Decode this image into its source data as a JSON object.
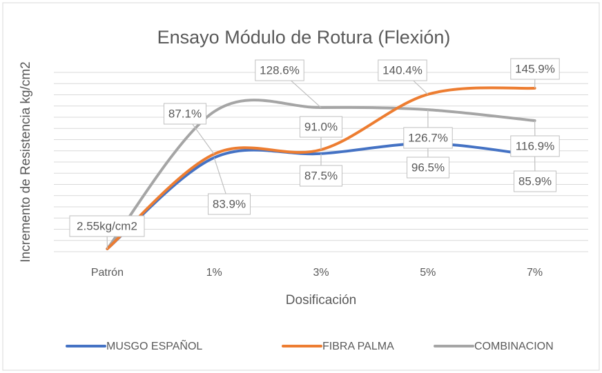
{
  "chart_data": {
    "type": "line",
    "title": "Ensayo Módulo de Rotura (Flexión)",
    "x_label": "Dosificación",
    "y_label": "Incremento de Resistencia kg/cm2",
    "categories": [
      "Patrón",
      "1%",
      "3%",
      "5%",
      "7%"
    ],
    "series": [
      {
        "name": "MUSGO ESPAÑOL",
        "color": "#4472c4",
        "values": [
          2.55,
          83.9,
          87.5,
          96.5,
          85.9
        ],
        "value_labels": [
          null,
          "83.9%",
          "87.5%",
          "96.5%",
          "85.9%"
        ]
      },
      {
        "name": "FIBRA PALMA",
        "color": "#ed7d31",
        "values": [
          2.55,
          87.1,
          91.0,
          140.4,
          145.9
        ],
        "value_labels": [
          null,
          "87.1%",
          "91.0%",
          "140.4%",
          "145.9%"
        ]
      },
      {
        "name": "COMBINACION",
        "color": "#a5a5a5",
        "values": [
          2.55,
          125,
          128.6,
          126.7,
          116.9
        ],
        "value_labels": [
          "2.55kg/cm2",
          null,
          "128.6%",
          "126.7%",
          "116.9%"
        ]
      }
    ],
    "ylim": [
      0,
      160
    ],
    "yticks": [
      0,
      10,
      20,
      30,
      40,
      50,
      60,
      70,
      80,
      90,
      100,
      110,
      120,
      130,
      140,
      150,
      160
    ],
    "grid": true,
    "smooth": true,
    "legend": "bottom"
  }
}
